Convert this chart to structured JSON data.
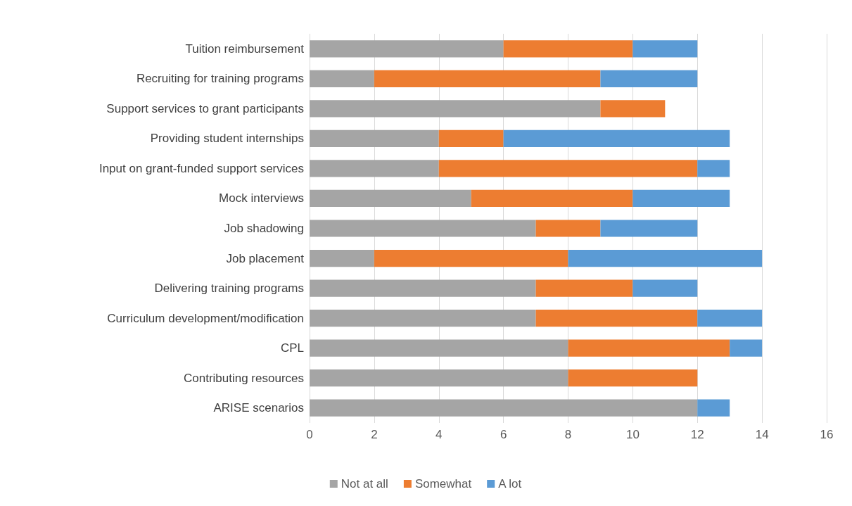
{
  "chart_data": {
    "type": "bar",
    "orientation": "horizontal",
    "stacked": true,
    "categories": [
      "Tuition reimbursement",
      "Recruiting for training programs",
      "Support services to grant participants",
      "Providing student internships",
      "Input on grant-funded support services",
      "Mock interviews",
      "Job shadowing",
      "Job placement",
      "Delivering training programs",
      "Curriculum development/modification",
      "CPL",
      "Contributing resources",
      "ARISE scenarios"
    ],
    "series": [
      {
        "name": "Not at all",
        "color": "#a5a5a5",
        "values": [
          6,
          2,
          9,
          4,
          4,
          5,
          7,
          2,
          7,
          7,
          8,
          8,
          12
        ]
      },
      {
        "name": "Somewhat",
        "color": "#ed7d31",
        "values": [
          4,
          7,
          2,
          2,
          8,
          5,
          2,
          6,
          3,
          5,
          5,
          4,
          0
        ]
      },
      {
        "name": "A lot",
        "color": "#5b9bd5",
        "values": [
          2,
          3,
          0,
          7,
          1,
          3,
          3,
          6,
          2,
          2,
          1,
          0,
          1
        ]
      }
    ],
    "xlim": [
      0,
      16
    ],
    "xticks": [
      0,
      2,
      4,
      6,
      8,
      10,
      12,
      14,
      16
    ],
    "grid": "x",
    "legend": "bottom"
  }
}
